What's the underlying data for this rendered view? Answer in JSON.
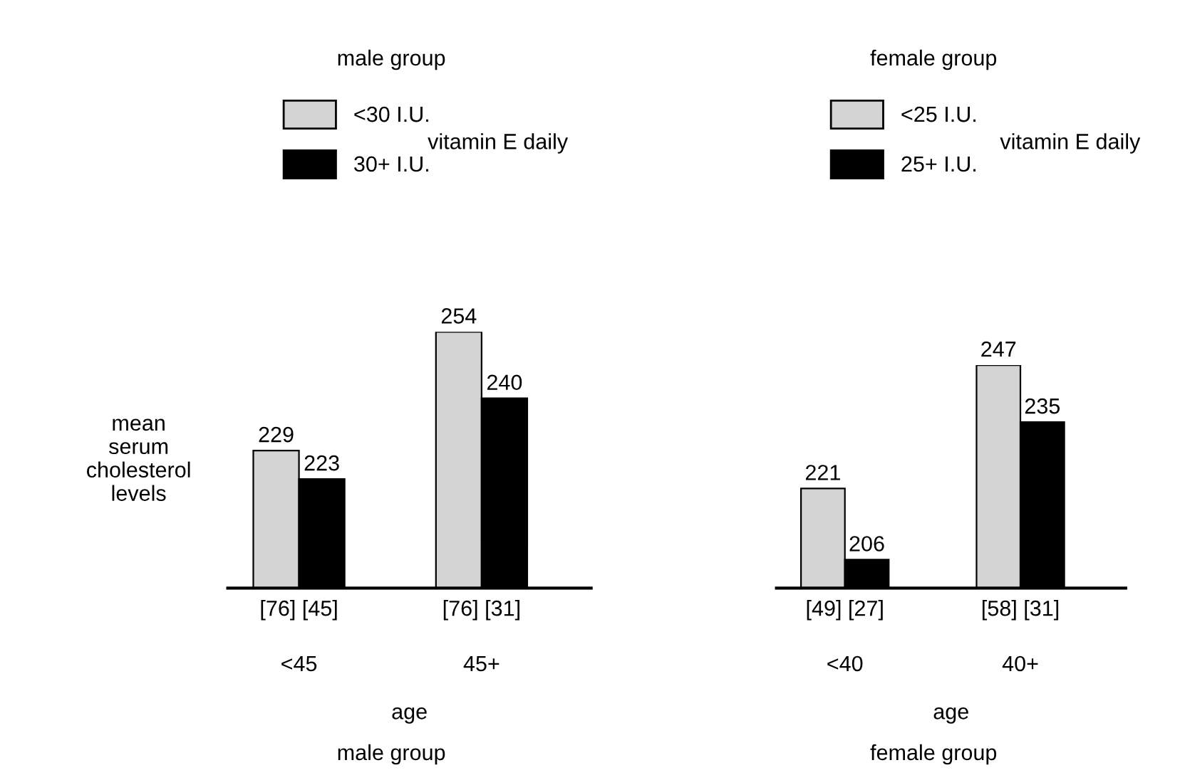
{
  "chart_data": [
    {
      "type": "bar",
      "title": "male group",
      "ylabel": "mean\nserum\ncholesterol\nlevels",
      "xlabel": "age",
      "legend_title": "vitamin E daily",
      "legend": "top",
      "data_labels": true,
      "tick_labels": "x",
      "ylim": [
        200,
        254
      ],
      "categories": [
        "<45",
        "45+"
      ],
      "series": [
        {
          "name": "<30 I.U.",
          "color": "#d4d4d4",
          "values": [
            229,
            254
          ]
        },
        {
          "name": "30+ I.U.",
          "color": "#000000",
          "values": [
            223,
            240
          ]
        }
      ],
      "annotations": [
        {
          "text": "[76] [45]",
          "x": "<45",
          "y": 200
        },
        {
          "text": "[76] [31]",
          "x": "45+",
          "y": 200
        },
        "male group"
      ]
    },
    {
      "type": "bar",
      "title": "female group",
      "xlabel": "age",
      "legend_title": "vitamin E daily",
      "legend": "top",
      "data_labels": true,
      "tick_labels": "x",
      "ylim": [
        200,
        247
      ],
      "categories": [
        "<40",
        "40+"
      ],
      "series": [
        {
          "name": "<25 I.U.",
          "color": "#d4d4d4",
          "values": [
            221,
            247
          ]
        },
        {
          "name": "25+ I.U.",
          "color": "#000000",
          "values": [
            206,
            235
          ]
        }
      ],
      "annotations": [
        {
          "text": "[49] [27]",
          "x": "<40",
          "y": 200
        },
        {
          "text": "[58] [31]",
          "x": "40+",
          "y": 200
        },
        "female group"
      ]
    }
  ]
}
